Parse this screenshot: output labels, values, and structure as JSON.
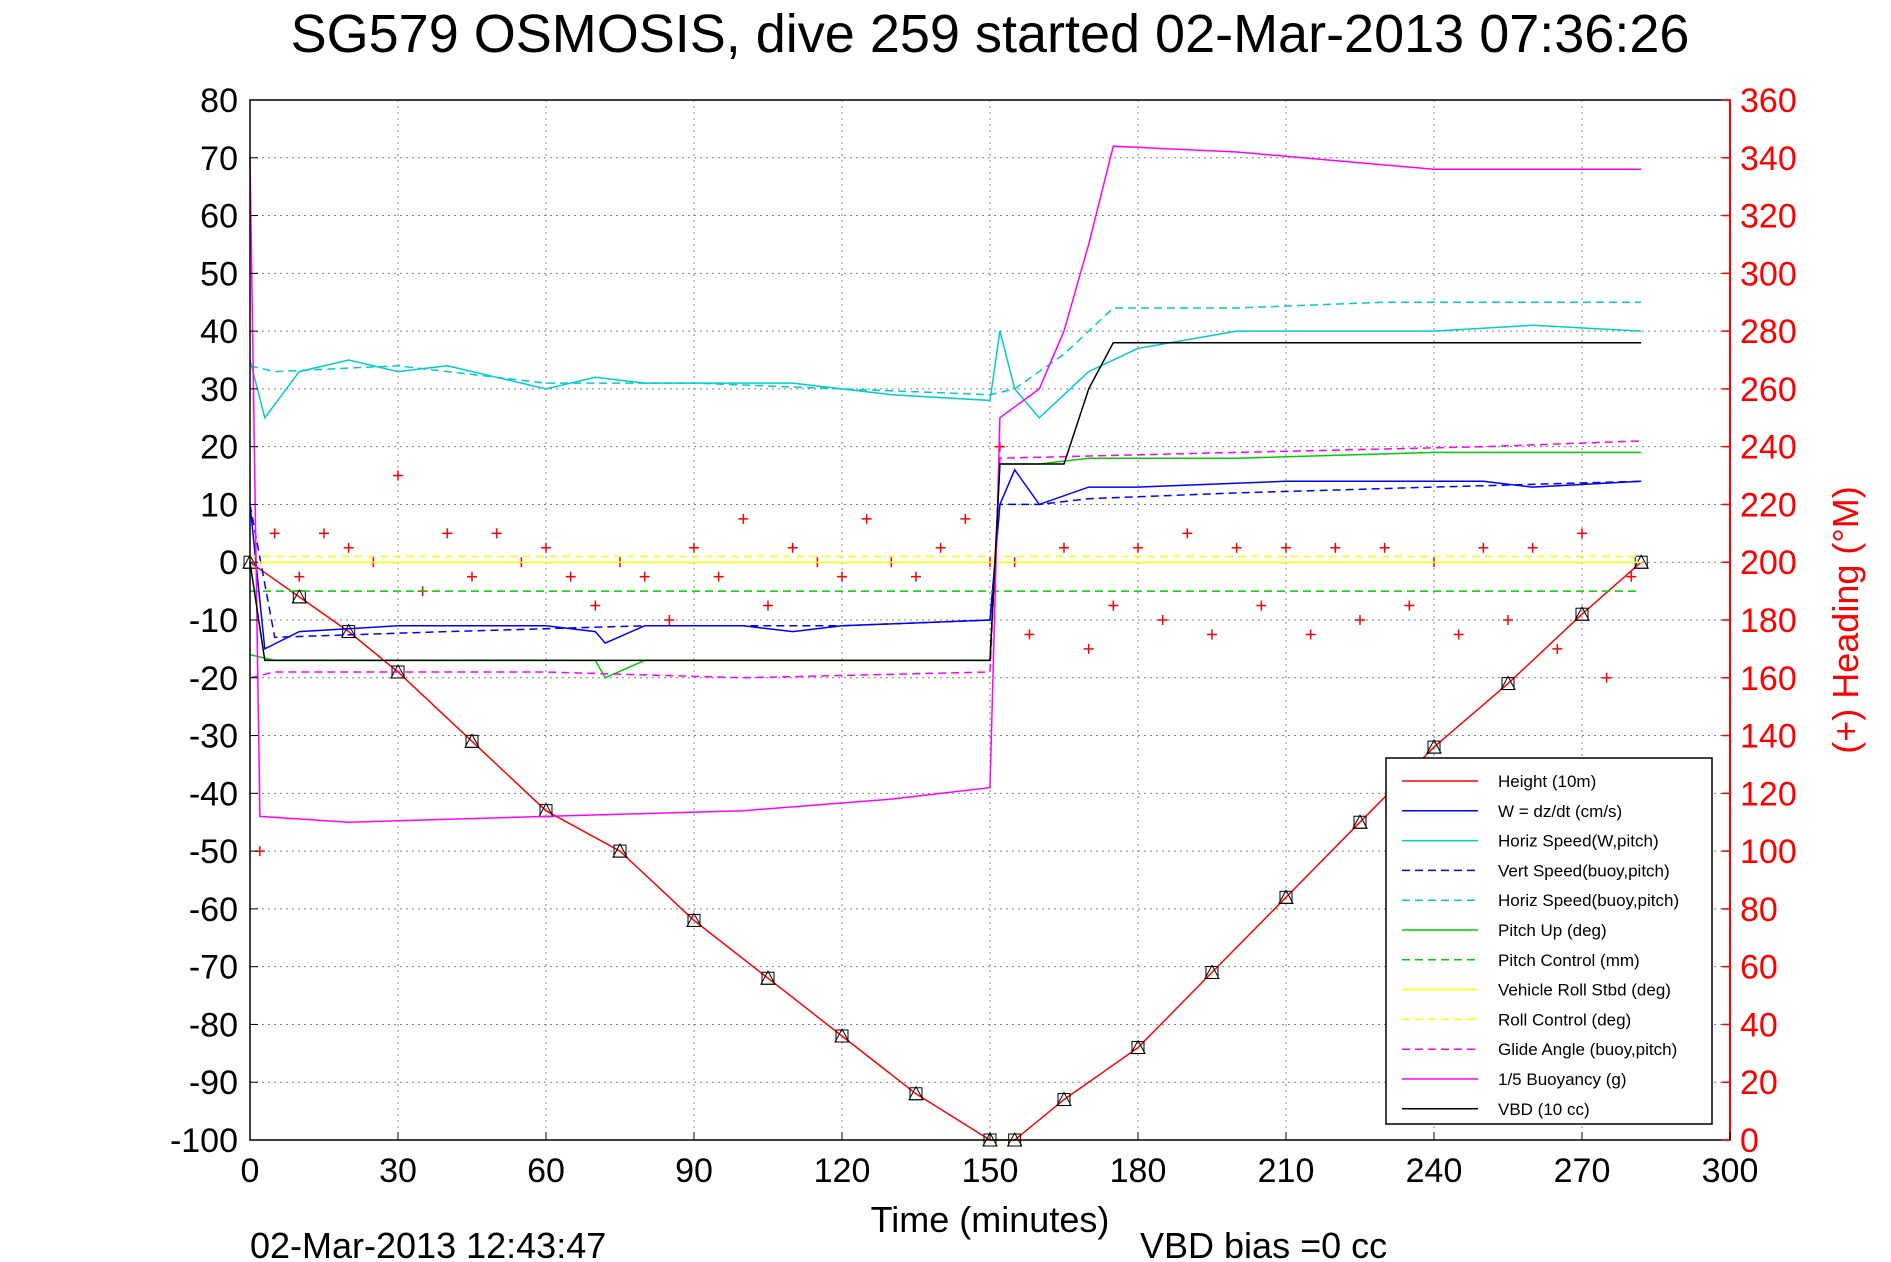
{
  "chart_data": {
    "type": "line",
    "title": "SG579 OSMOSIS, dive 259 started 02-Mar-2013 07:36:26",
    "xlabel": "Time (minutes)",
    "ylabel": "",
    "y2label": "(+) Heading (°M)",
    "xlim": [
      0,
      300
    ],
    "ylim": [
      -100,
      80
    ],
    "y2lim": [
      0,
      360
    ],
    "x_ticks": [
      "0",
      "30",
      "60",
      "90",
      "120",
      "150",
      "180",
      "210",
      "240",
      "270",
      "300"
    ],
    "y_ticks": [
      "80",
      "70",
      "60",
      "50",
      "40",
      "30",
      "20",
      "10",
      "0",
      "-10",
      "-20",
      "-30",
      "-40",
      "-50",
      "-60",
      "-70",
      "-80",
      "-90",
      "-100"
    ],
    "y2_ticks": [
      "360",
      "340",
      "320",
      "300",
      "280",
      "260",
      "240",
      "220",
      "200",
      "180",
      "160",
      "140",
      "120",
      "100",
      "80",
      "60",
      "40",
      "20",
      "0"
    ],
    "grid": true,
    "legend_position": "bottom-right",
    "footer_left": "02-Mar-2013 12:43:47",
    "footer_center": "VBD bias =0 cc",
    "series": [
      {
        "name": "Height (10m)",
        "color": "#ff0000",
        "style": "solid",
        "marker": "triangle-square",
        "points": [
          [
            0,
            0
          ],
          [
            10,
            -6
          ],
          [
            20,
            -12
          ],
          [
            30,
            -19
          ],
          [
            45,
            -31
          ],
          [
            60,
            -43
          ],
          [
            75,
            -50
          ],
          [
            90,
            -62
          ],
          [
            105,
            -72
          ],
          [
            120,
            -82
          ],
          [
            135,
            -92
          ],
          [
            150,
            -100
          ],
          [
            155,
            -100
          ],
          [
            165,
            -93
          ],
          [
            180,
            -84
          ],
          [
            195,
            -71
          ],
          [
            210,
            -58
          ],
          [
            225,
            -45
          ],
          [
            240,
            -32
          ],
          [
            255,
            -21
          ],
          [
            270,
            -9
          ],
          [
            282,
            0
          ]
        ]
      },
      {
        "name": "W = dz/dt (cm/s)",
        "color": "#0000ff",
        "style": "solid",
        "points": [
          [
            0,
            10
          ],
          [
            3,
            -15
          ],
          [
            10,
            -12
          ],
          [
            30,
            -11
          ],
          [
            60,
            -11
          ],
          [
            70,
            -12
          ],
          [
            72,
            -14
          ],
          [
            80,
            -11
          ],
          [
            100,
            -11
          ],
          [
            110,
            -12
          ],
          [
            120,
            -11
          ],
          [
            150,
            -10
          ],
          [
            152,
            10
          ],
          [
            155,
            16
          ],
          [
            160,
            10
          ],
          [
            170,
            13
          ],
          [
            180,
            13
          ],
          [
            210,
            14
          ],
          [
            240,
            14
          ],
          [
            250,
            14
          ],
          [
            260,
            13
          ],
          [
            282,
            14
          ]
        ]
      },
      {
        "name": "Horiz Speed(W,pitch)",
        "color": "#00cccc",
        "style": "solid",
        "points": [
          [
            0,
            35
          ],
          [
            3,
            25
          ],
          [
            10,
            33
          ],
          [
            20,
            35
          ],
          [
            30,
            33
          ],
          [
            40,
            34
          ],
          [
            50,
            32
          ],
          [
            60,
            30
          ],
          [
            70,
            32
          ],
          [
            80,
            31
          ],
          [
            100,
            31
          ],
          [
            110,
            31
          ],
          [
            130,
            29
          ],
          [
            150,
            28
          ],
          [
            152,
            40
          ],
          [
            155,
            30
          ],
          [
            160,
            25
          ],
          [
            170,
            33
          ],
          [
            180,
            37
          ],
          [
            200,
            40
          ],
          [
            220,
            40
          ],
          [
            240,
            40
          ],
          [
            260,
            41
          ],
          [
            282,
            40
          ]
        ]
      },
      {
        "name": "Vert Speed(buoy,pitch)",
        "color": "#0000ff",
        "style": "dashed",
        "points": [
          [
            0,
            10
          ],
          [
            5,
            -13
          ],
          [
            40,
            -12
          ],
          [
            80,
            -11
          ],
          [
            120,
            -11
          ],
          [
            150,
            -10
          ],
          [
            152,
            10
          ],
          [
            160,
            10
          ],
          [
            170,
            11
          ],
          [
            200,
            12
          ],
          [
            240,
            13
          ],
          [
            282,
            14
          ]
        ]
      },
      {
        "name": "Horiz Speed(buoy,pitch)",
        "color": "#00cccc",
        "style": "dashed",
        "points": [
          [
            0,
            34
          ],
          [
            5,
            33
          ],
          [
            30,
            34
          ],
          [
            60,
            31
          ],
          [
            90,
            31
          ],
          [
            120,
            30
          ],
          [
            150,
            29
          ],
          [
            155,
            30
          ],
          [
            165,
            36
          ],
          [
            175,
            44
          ],
          [
            200,
            44
          ],
          [
            230,
            45
          ],
          [
            260,
            45
          ],
          [
            282,
            45
          ]
        ]
      },
      {
        "name": "Pitch Up (deg)",
        "color": "#00cc00",
        "style": "solid",
        "points": [
          [
            0,
            -16
          ],
          [
            5,
            -17
          ],
          [
            40,
            -17
          ],
          [
            60,
            -17
          ],
          [
            70,
            -17
          ],
          [
            72,
            -20
          ],
          [
            80,
            -17
          ],
          [
            100,
            -17
          ],
          [
            110,
            -17
          ],
          [
            140,
            -17
          ],
          [
            150,
            -17
          ],
          [
            152,
            17
          ],
          [
            160,
            17
          ],
          [
            170,
            18
          ],
          [
            200,
            18
          ],
          [
            240,
            19
          ],
          [
            282,
            19
          ]
        ]
      },
      {
        "name": "Pitch Control (mm)",
        "color": "#00cc00",
        "style": "dashed",
        "points": [
          [
            0,
            -5
          ],
          [
            282,
            -5
          ]
        ]
      },
      {
        "name": "Vehicle Roll Stbd (deg)",
        "color": "#ffff00",
        "style": "solid",
        "points": [
          [
            0,
            0
          ],
          [
            5,
            0
          ],
          [
            50,
            0
          ],
          [
            100,
            0
          ],
          [
            150,
            0
          ],
          [
            160,
            0
          ],
          [
            200,
            0
          ],
          [
            250,
            0
          ],
          [
            282,
            0
          ]
        ]
      },
      {
        "name": "Roll Control (deg)",
        "color": "#ffff00",
        "style": "dashed",
        "points": [
          [
            0,
            1
          ],
          [
            282,
            1
          ]
        ]
      },
      {
        "name": "Glide Angle (buoy,pitch)",
        "color": "#ff00ff",
        "style": "dashed",
        "points": [
          [
            0,
            -20
          ],
          [
            5,
            -19
          ],
          [
            60,
            -19
          ],
          [
            100,
            -20
          ],
          [
            150,
            -19
          ],
          [
            152,
            18
          ],
          [
            200,
            19
          ],
          [
            250,
            20
          ],
          [
            282,
            21
          ]
        ]
      },
      {
        "name": "1/5 Buoyancy (g)",
        "color": "#ff00ff",
        "style": "solid",
        "points": [
          [
            0,
            70
          ],
          [
            2,
            -44
          ],
          [
            20,
            -45
          ],
          [
            60,
            -44
          ],
          [
            100,
            -43
          ],
          [
            130,
            -41
          ],
          [
            150,
            -39
          ],
          [
            152,
            25
          ],
          [
            160,
            30
          ],
          [
            165,
            40
          ],
          [
            170,
            55
          ],
          [
            175,
            72
          ],
          [
            200,
            71
          ],
          [
            240,
            68
          ],
          [
            282,
            68
          ]
        ]
      },
      {
        "name": "VBD (10 cc)",
        "color": "#000000",
        "style": "solid",
        "points": [
          [
            0,
            0
          ],
          [
            3,
            -17
          ],
          [
            50,
            -17
          ],
          [
            100,
            -17
          ],
          [
            150,
            -17
          ],
          [
            152,
            17
          ],
          [
            165,
            17
          ],
          [
            170,
            30
          ],
          [
            175,
            38
          ],
          [
            200,
            38
          ],
          [
            250,
            38
          ],
          [
            282,
            38
          ]
        ]
      }
    ],
    "heading_series": {
      "name": "(+) Heading (°M)",
      "color": "#ff0000",
      "marker": "+",
      "axis": "right",
      "points": [
        [
          2,
          100
        ],
        [
          5,
          210
        ],
        [
          10,
          195
        ],
        [
          15,
          210
        ],
        [
          20,
          205
        ],
        [
          25,
          200
        ],
        [
          30,
          230
        ],
        [
          35,
          190
        ],
        [
          40,
          210
        ],
        [
          45,
          195
        ],
        [
          50,
          210
        ],
        [
          55,
          200
        ],
        [
          60,
          205
        ],
        [
          65,
          195
        ],
        [
          70,
          185
        ],
        [
          75,
          200
        ],
        [
          80,
          195
        ],
        [
          85,
          180
        ],
        [
          90,
          205
        ],
        [
          95,
          195
        ],
        [
          100,
          215
        ],
        [
          105,
          185
        ],
        [
          110,
          205
        ],
        [
          115,
          200
        ],
        [
          120,
          195
        ],
        [
          125,
          215
        ],
        [
          130,
          200
        ],
        [
          135,
          195
        ],
        [
          140,
          205
        ],
        [
          145,
          215
        ],
        [
          150,
          200
        ],
        [
          152,
          240
        ],
        [
          155,
          200
        ],
        [
          158,
          175
        ],
        [
          165,
          205
        ],
        [
          170,
          170
        ],
        [
          175,
          185
        ],
        [
          180,
          205
        ],
        [
          185,
          180
        ],
        [
          190,
          210
        ],
        [
          195,
          175
        ],
        [
          200,
          205
        ],
        [
          205,
          185
        ],
        [
          210,
          205
        ],
        [
          215,
          175
        ],
        [
          220,
          205
        ],
        [
          225,
          180
        ],
        [
          230,
          205
        ],
        [
          235,
          185
        ],
        [
          240,
          200
        ],
        [
          245,
          175
        ],
        [
          250,
          205
        ],
        [
          255,
          180
        ],
        [
          260,
          205
        ],
        [
          265,
          170
        ],
        [
          270,
          210
        ],
        [
          275,
          160
        ],
        [
          280,
          195
        ]
      ]
    }
  }
}
